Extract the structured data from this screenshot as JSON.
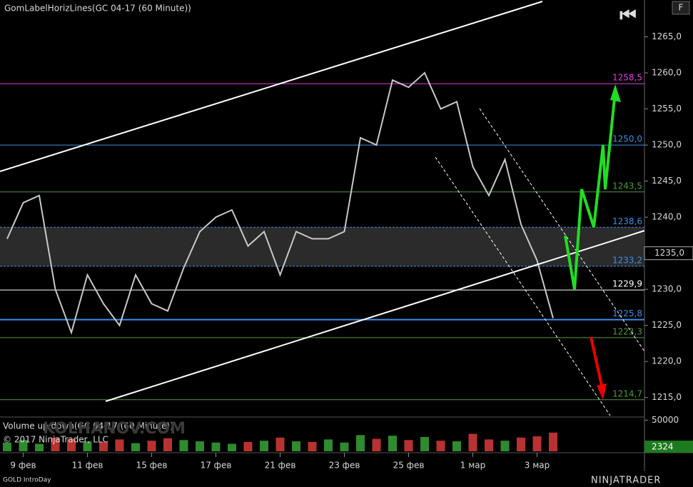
{
  "chart_data": {
    "type": "line",
    "title": "GomLabelHorizLines(GC 04-17 (60 Minute))",
    "copyright": "© 2017 NinjaTrader, LLC",
    "instrument_label": "GOLD IntroDay",
    "brand": "NINJATRADER",
    "watermark": "KOLHANOV.COM",
    "button": "F",
    "categories": [
      null,
      "9 фев",
      null,
      null,
      null,
      "11 фев",
      null,
      null,
      null,
      "15 фев",
      null,
      null,
      null,
      "17 фев",
      null,
      null,
      null,
      "21 фев",
      null,
      null,
      null,
      "23 фев",
      null,
      null,
      null,
      "25 фев",
      null,
      null,
      null,
      "1 мар",
      null,
      null,
      null,
      "3 мар",
      null
    ],
    "series": [
      {
        "color": "#c8c8c8",
        "values": [
          1237,
          1242,
          1243,
          1230,
          1224,
          1232,
          1228,
          1225,
          1232,
          1228,
          1227,
          1233,
          1238,
          1240,
          1241,
          1236,
          1238,
          1232,
          1238,
          1237,
          1237,
          1238,
          1251,
          1250,
          1259,
          1258,
          1260,
          1255,
          1256,
          1247,
          1243,
          1248,
          1239,
          1234,
          1226
        ]
      }
    ],
    "ylim": [
      1212.3,
      1270.1
    ],
    "yticks": [
      {
        "value": 1215,
        "label": "1215,0"
      },
      {
        "value": 1220,
        "label": "1220,0"
      },
      {
        "value": 1225,
        "label": "1225,0"
      },
      {
        "value": 1230,
        "label": "1230,0"
      },
      {
        "value": 1235,
        "label": "1235,0"
      },
      {
        "value": 1240,
        "label": "1240,0"
      },
      {
        "value": 1245,
        "label": "1245,0"
      },
      {
        "value": 1250,
        "label": "1250,0"
      },
      {
        "value": 1255,
        "label": "1255,0"
      },
      {
        "value": 1260,
        "label": "1260,0"
      },
      {
        "value": 1265,
        "label": "1265,0"
      }
    ],
    "current_price": {
      "value": 1235,
      "label": "1235,0"
    },
    "zone": [
      1233.2,
      1238.6
    ],
    "levels": [
      {
        "value": 1258.5,
        "label": "1258,5",
        "color": "#e040e0"
      },
      {
        "value": 1250,
        "label": "1250,0",
        "color": "#3d8fe8"
      },
      {
        "value": 1243.5,
        "label": "1243,5",
        "color": "#4f9a3a"
      },
      {
        "value": 1238.6,
        "label": "1238,6",
        "color": "#3d8fe8"
      },
      {
        "value": 1233.2,
        "label": "1233,2",
        "color": "#3d8fe8"
      },
      {
        "value": 1229.9,
        "label": "1229,9",
        "color": "#ffffff"
      },
      {
        "value": 1225.8,
        "label": "1225,8",
        "color": "#3d8fe8"
      },
      {
        "value": 1223.3,
        "label": "1223,3",
        "color": "#4f9a3a"
      },
      {
        "value": 1214.7,
        "label": "1214,7",
        "color": "#4f9a3a"
      }
    ],
    "volume": {
      "title": "Volume up down(GC 04-17 (60 Minute))",
      "ylim": [
        0,
        55000
      ],
      "yticks": [
        50000
      ],
      "last": 2324,
      "up_color": "#2e8b2e",
      "down_color": "#b83232",
      "values": [
        14000,
        18000,
        12000,
        22000,
        20000,
        16000,
        15000,
        19000,
        13000,
        17000,
        21000,
        18000,
        16000,
        14000,
        12000,
        15000,
        17000,
        22000,
        16000,
        15000,
        19000,
        14000,
        26000,
        20000,
        25000,
        18000,
        23000,
        17000,
        16000,
        28000,
        19000,
        17000,
        22000,
        24000,
        30000
      ]
    }
  }
}
